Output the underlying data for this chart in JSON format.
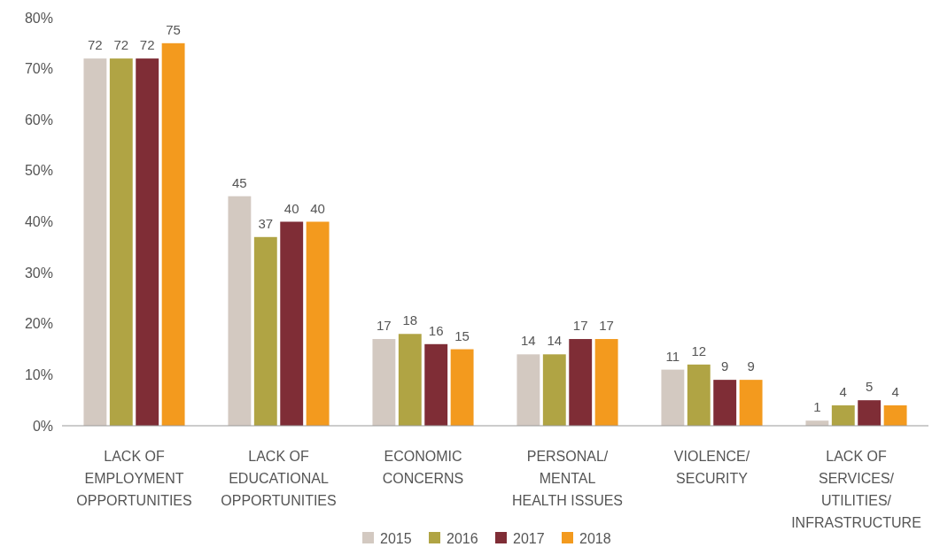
{
  "chart_data": {
    "type": "bar",
    "categories": [
      "LACK OF\nEMPLOYMENT\nOPPORTUNITIES",
      "LACK OF\nEDUCATIONAL\nOPPORTUNITIES",
      "ECONOMIC\nCONCERNS",
      "PERSONAL/\nMENTAL\nHEALTH ISSUES",
      "VIOLENCE/\nSECURITY",
      "LACK OF\nSERVICES/\nUTILITIES/\nINFRASTRUCTURE"
    ],
    "series": [
      {
        "name": "2015",
        "color": "#d3c9c1",
        "values": [
          72,
          45,
          17,
          14,
          11,
          1
        ]
      },
      {
        "name": "2016",
        "color": "#b0a444",
        "values": [
          72,
          37,
          18,
          14,
          12,
          4
        ]
      },
      {
        "name": "2017",
        "color": "#7f2d36",
        "values": [
          72,
          40,
          16,
          17,
          9,
          5
        ]
      },
      {
        "name": "2018",
        "color": "#f39a1e",
        "values": [
          75,
          40,
          15,
          17,
          9,
          4
        ]
      }
    ],
    "ylim": [
      0,
      80
    ],
    "yticks": [
      {
        "value": 0,
        "label": "0%"
      },
      {
        "value": 10,
        "label": "10%"
      },
      {
        "value": 20,
        "label": "20%"
      },
      {
        "value": 30,
        "label": "30%"
      },
      {
        "value": 40,
        "label": "40%"
      },
      {
        "value": 50,
        "label": "50%"
      },
      {
        "value": 60,
        "label": "60%"
      },
      {
        "value": 70,
        "label": "70%"
      },
      {
        "value": 80,
        "label": "80%"
      }
    ],
    "data_labels": true,
    "grid": false,
    "legend": "bottom"
  }
}
